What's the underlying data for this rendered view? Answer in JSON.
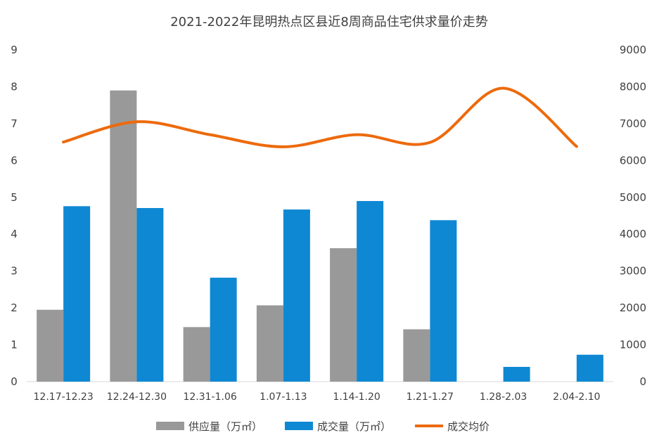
{
  "chart_data": {
    "type": "bar",
    "title": "2021-2022年昆明热点区县近8周商品住宅供求量价走势",
    "categories": [
      "12.17-12.23",
      "12.24-12.30",
      "12.31-1.06",
      "1.07-1.13",
      "1.14-1.20",
      "1.21-1.27",
      "1.28-2.03",
      "2.04-2.10"
    ],
    "series": [
      {
        "name": "供应量（万㎡）",
        "type": "bar",
        "axis": "left",
        "color": "#999999",
        "values": [
          1.95,
          7.9,
          1.48,
          2.07,
          3.62,
          1.42,
          null,
          null
        ]
      },
      {
        "name": "成交量（万㎡）",
        "type": "bar",
        "axis": "left",
        "color": "#0E88D3",
        "values": [
          4.76,
          4.71,
          2.82,
          4.67,
          4.9,
          4.38,
          0.4,
          0.73
        ]
      },
      {
        "name": "成交均价",
        "type": "line",
        "axis": "right",
        "color": "#ED6A0C",
        "smooth": true,
        "values": [
          6500,
          7050,
          6700,
          6370,
          6700,
          6490,
          7960,
          6380
        ]
      }
    ],
    "y_left": {
      "min": 0,
      "max": 9,
      "ticks": [
        "0",
        "1",
        "2",
        "3",
        "4",
        "5",
        "6",
        "7",
        "8",
        "9"
      ]
    },
    "y_right": {
      "min": 0,
      "max": 9000,
      "ticks": [
        "0",
        "1000",
        "2000",
        "3000",
        "4000",
        "5000",
        "6000",
        "7000",
        "8000",
        "9000"
      ]
    },
    "grid": false,
    "legend_position": "bottom"
  }
}
